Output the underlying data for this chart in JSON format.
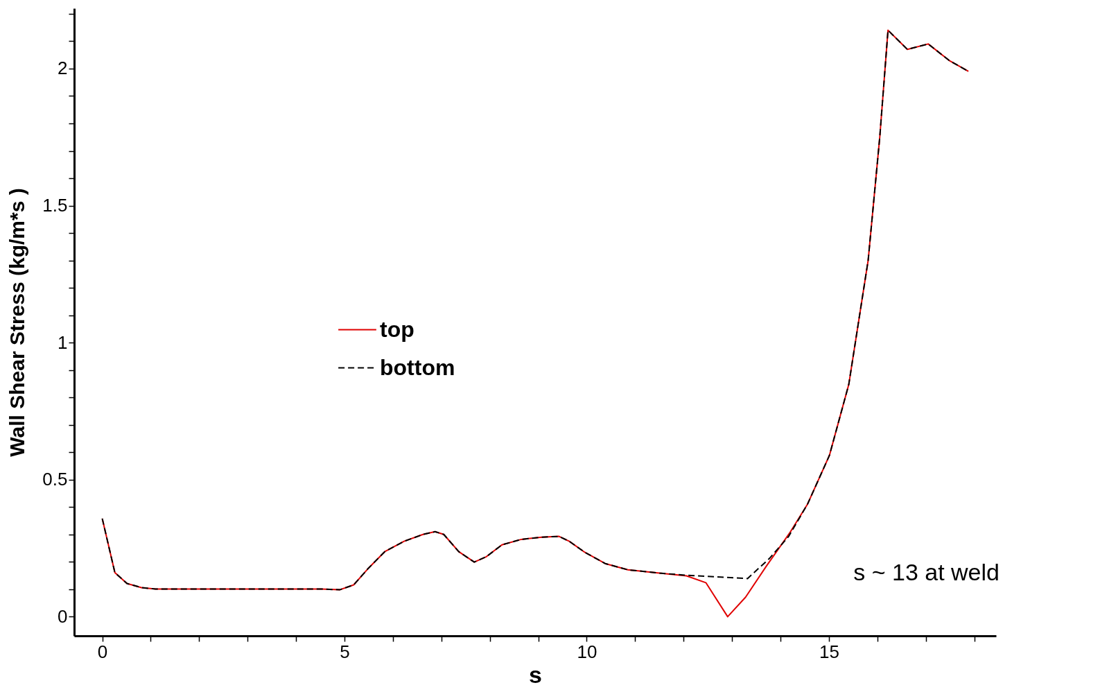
{
  "chart_data": {
    "type": "line",
    "xlabel": "s",
    "ylabel": "Wall Shear Stress (kg/m*s )",
    "xlim": [
      -0.58,
      18.45
    ],
    "ylim": [
      -0.07,
      2.22
    ],
    "xticks": [
      0,
      {
        "value": 1,
        "label": null
      },
      {
        "value": 2,
        "label": null
      },
      {
        "value": 3,
        "label": null
      },
      {
        "value": 4,
        "label": null
      },
      5,
      {
        "value": 6,
        "label": null
      },
      {
        "value": 7,
        "label": null
      },
      {
        "value": 8,
        "label": null
      },
      {
        "value": 9,
        "label": null
      },
      10,
      {
        "value": 11,
        "label": null
      },
      {
        "value": 12,
        "label": null
      },
      {
        "value": 13,
        "label": null
      },
      {
        "value": 14,
        "label": null
      },
      15,
      {
        "value": 16,
        "label": null
      },
      {
        "value": 17,
        "label": null
      },
      {
        "value": 18,
        "label": null
      }
    ],
    "yticks": [
      0,
      {
        "value": 0.1,
        "label": null
      },
      {
        "value": 0.2,
        "label": null
      },
      {
        "value": 0.3,
        "label": null
      },
      {
        "value": 0.4,
        "label": null
      },
      0.5,
      {
        "value": 0.6,
        "label": null
      },
      {
        "value": 0.7,
        "label": null
      },
      {
        "value": 0.8,
        "label": null
      },
      {
        "value": 0.9,
        "label": null
      },
      1,
      {
        "value": 1.1,
        "label": null
      },
      {
        "value": 1.2,
        "label": null
      },
      {
        "value": 1.3,
        "label": null
      },
      {
        "value": 1.4,
        "label": null
      },
      1.5,
      {
        "value": 1.6,
        "label": null
      },
      {
        "value": 1.7,
        "label": null
      },
      {
        "value": 1.8,
        "label": null
      },
      {
        "value": 1.9,
        "label": null
      },
      2,
      {
        "value": 2.1,
        "label": null
      },
      {
        "value": 2.2,
        "label": null
      }
    ],
    "grid": false,
    "legend": "left",
    "marker": "none",
    "annotations": [
      "s ~ 13 at weld"
    ],
    "series": [
      {
        "name": "top",
        "color": "#e00000",
        "line_style": "solid",
        "x": [
          0,
          0.26,
          0.51,
          0.81,
          1.1,
          1.67,
          2.5,
          3.5,
          4.52,
          4.9,
          5.19,
          5.48,
          5.83,
          6.23,
          6.62,
          6.87,
          7.05,
          7.36,
          7.68,
          7.93,
          8.25,
          8.65,
          9.07,
          9.43,
          9.64,
          9.96,
          10.38,
          10.85,
          11.5,
          12.06,
          12.46,
          12.91,
          13.28,
          13.7,
          14.2,
          14.56,
          15.01,
          15.41,
          15.81,
          16.05,
          16.22,
          16.62,
          17.05,
          17.48,
          17.88
        ],
        "values": [
          0.358,
          0.161,
          0.121,
          0.106,
          0.101,
          0.101,
          0.101,
          0.101,
          0.101,
          0.098,
          0.116,
          0.174,
          0.237,
          0.275,
          0.3,
          0.31,
          0.3,
          0.237,
          0.199,
          0.219,
          0.262,
          0.282,
          0.29,
          0.293,
          0.275,
          0.235,
          0.194,
          0.171,
          0.159,
          0.149,
          0.124,
          0.0,
          0.071,
          0.182,
          0.308,
          0.411,
          0.588,
          0.847,
          1.3,
          1.75,
          2.14,
          2.07,
          2.09,
          2.03,
          1.99
        ]
      },
      {
        "name": "bottom",
        "color": "#000000",
        "line_style": "dashed",
        "x": [
          0,
          0.26,
          0.51,
          0.81,
          1.1,
          1.67,
          2.5,
          3.5,
          4.52,
          4.9,
          5.19,
          5.48,
          5.83,
          6.23,
          6.62,
          6.87,
          7.05,
          7.36,
          7.68,
          7.93,
          8.25,
          8.65,
          9.07,
          9.43,
          9.64,
          9.96,
          10.38,
          10.85,
          11.5,
          12.06,
          13.32,
          13.77,
          14.17,
          14.56,
          15.01,
          15.41,
          15.81,
          16.05,
          16.22,
          16.62,
          17.05,
          17.48,
          17.88
        ],
        "values": [
          0.358,
          0.161,
          0.121,
          0.106,
          0.101,
          0.101,
          0.101,
          0.101,
          0.101,
          0.098,
          0.116,
          0.174,
          0.237,
          0.275,
          0.3,
          0.31,
          0.3,
          0.237,
          0.199,
          0.219,
          0.262,
          0.282,
          0.29,
          0.293,
          0.275,
          0.235,
          0.194,
          0.171,
          0.159,
          0.151,
          0.139,
          0.212,
          0.293,
          0.411,
          0.588,
          0.847,
          1.3,
          1.75,
          2.14,
          2.07,
          2.09,
          2.03,
          1.99
        ]
      }
    ]
  }
}
